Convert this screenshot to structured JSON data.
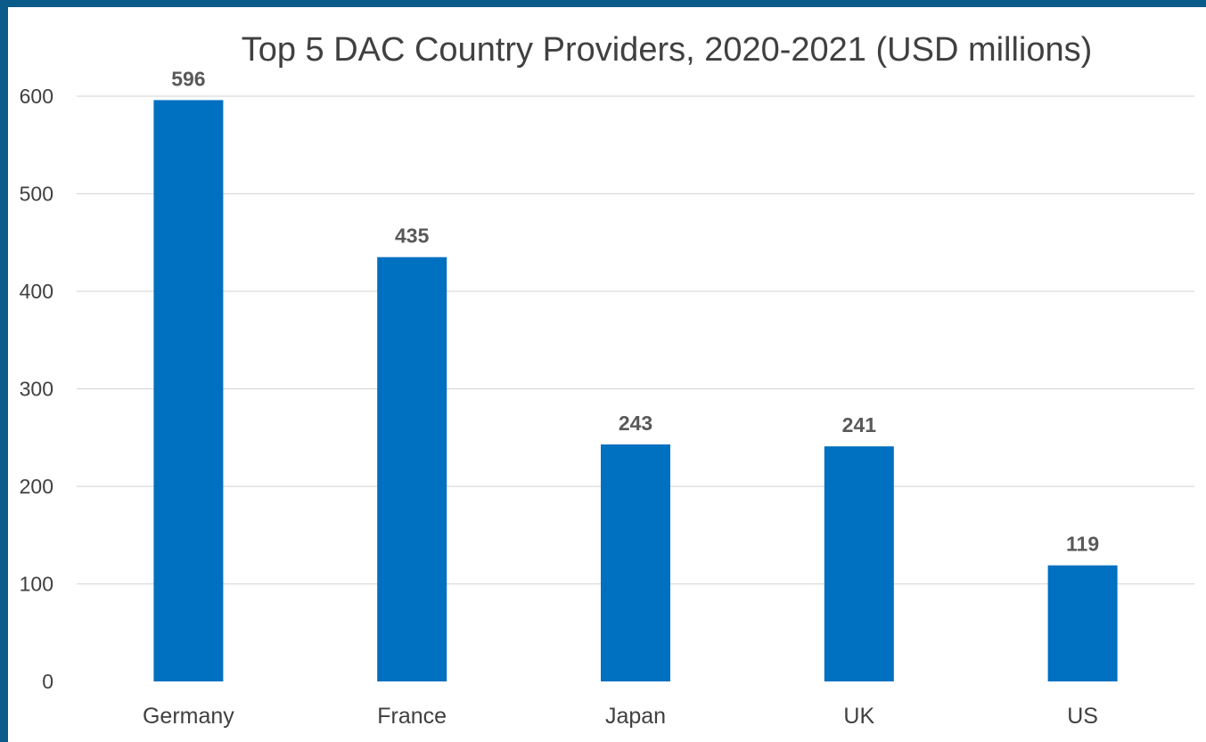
{
  "chart_data": {
    "type": "bar",
    "title": "Top 5 DAC Country Providers, 2020-2021 (USD millions)",
    "categories": [
      "Germany",
      "France",
      "Japan",
      "UK",
      "US"
    ],
    "values": [
      596,
      435,
      243,
      241,
      119
    ],
    "data_labels": [
      "596",
      "435",
      "243",
      "241",
      "119"
    ],
    "ylim": [
      0,
      600
    ],
    "yticks": [
      0,
      100,
      200,
      300,
      400,
      500,
      600
    ],
    "xlabel": "",
    "ylabel": "",
    "grid": true,
    "legend": "none",
    "bar_color": "#0070c0",
    "frame_color": "#0a5a8a"
  }
}
